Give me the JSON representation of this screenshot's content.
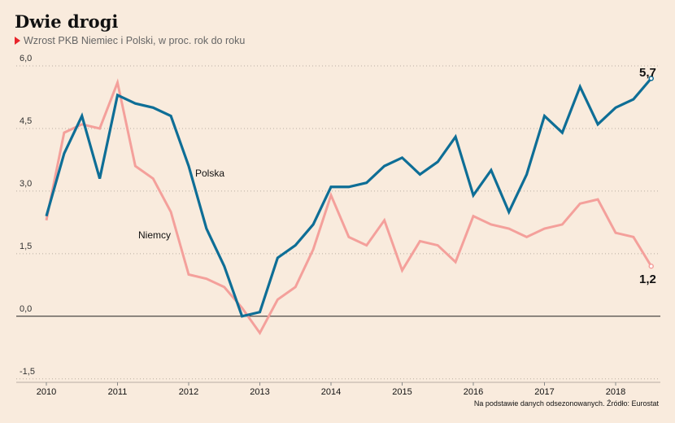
{
  "header": {
    "title": "Dwie drogi",
    "subtitle": "Wzrost PKB Niemiec i Polski, w proc. rok do roku",
    "arrow_icon": "red-triangle-icon"
  },
  "source": "Na podstawie danych odsezonowanych. Źródło: Eurostat",
  "colors": {
    "polska": "#0e6e96",
    "niemcy": "#f4a09b",
    "accent": "#e8242b",
    "background": "#f9ebdd"
  },
  "chart_data": {
    "type": "line",
    "title": "Dwie drogi",
    "subtitle": "Wzrost PKB Niemiec i Polski, w proc. rok do roku",
    "xlabel": "",
    "ylabel": "",
    "xlim": [
      2010,
      2018.75
    ],
    "ylim": [
      -1.5,
      6.0
    ],
    "yticks": [
      6.0,
      4.5,
      3.0,
      1.5,
      0.0,
      -1.5
    ],
    "ytick_labels": [
      "6,0",
      "4,5",
      "3,0",
      "1,5",
      "0,0",
      "-1,5"
    ],
    "xticks": [
      2010,
      2011,
      2012,
      2013,
      2014,
      2015,
      2016,
      2017,
      2018
    ],
    "xtick_labels": [
      "2010",
      "2011",
      "2012",
      "2013",
      "2014",
      "2015",
      "2016",
      "2017",
      "2018"
    ],
    "grid": "y-dotted",
    "x": [
      2010.0,
      2010.25,
      2010.5,
      2010.75,
      2011.0,
      2011.25,
      2011.5,
      2011.75,
      2012.0,
      2012.25,
      2012.5,
      2012.75,
      2013.0,
      2013.25,
      2013.5,
      2013.75,
      2014.0,
      2014.25,
      2014.5,
      2014.75,
      2015.0,
      2015.25,
      2015.5,
      2015.75,
      2016.0,
      2016.25,
      2016.5,
      2016.75,
      2017.0,
      2017.25,
      2017.5,
      2017.75,
      2018.0,
      2018.25,
      2018.5
    ],
    "series": [
      {
        "name": "Polska",
        "label_text": "Polska",
        "color": "#0e6e96",
        "values": [
          2.4,
          3.9,
          4.8,
          3.3,
          5.3,
          5.1,
          5.0,
          4.8,
          3.6,
          2.1,
          1.2,
          0.0,
          0.1,
          1.4,
          1.7,
          2.2,
          3.1,
          3.1,
          3.2,
          3.6,
          3.8,
          3.4,
          3.7,
          4.3,
          2.9,
          3.5,
          2.5,
          3.4,
          4.8,
          4.4,
          5.5,
          4.6,
          5.0,
          5.2,
          5.7
        ],
        "end_label": "5,7"
      },
      {
        "name": "Niemcy",
        "label_text": "Niemcy",
        "color": "#f4a09b",
        "values": [
          2.3,
          4.4,
          4.6,
          4.5,
          5.6,
          3.6,
          3.3,
          2.5,
          1.0,
          0.9,
          0.7,
          0.2,
          -0.4,
          0.4,
          0.7,
          1.6,
          2.9,
          1.9,
          1.7,
          2.3,
          1.1,
          1.8,
          1.7,
          1.3,
          2.4,
          2.2,
          2.1,
          1.9,
          2.1,
          2.2,
          2.7,
          2.8,
          2.0,
          1.9,
          1.2
        ],
        "end_label": "1,2"
      }
    ]
  }
}
